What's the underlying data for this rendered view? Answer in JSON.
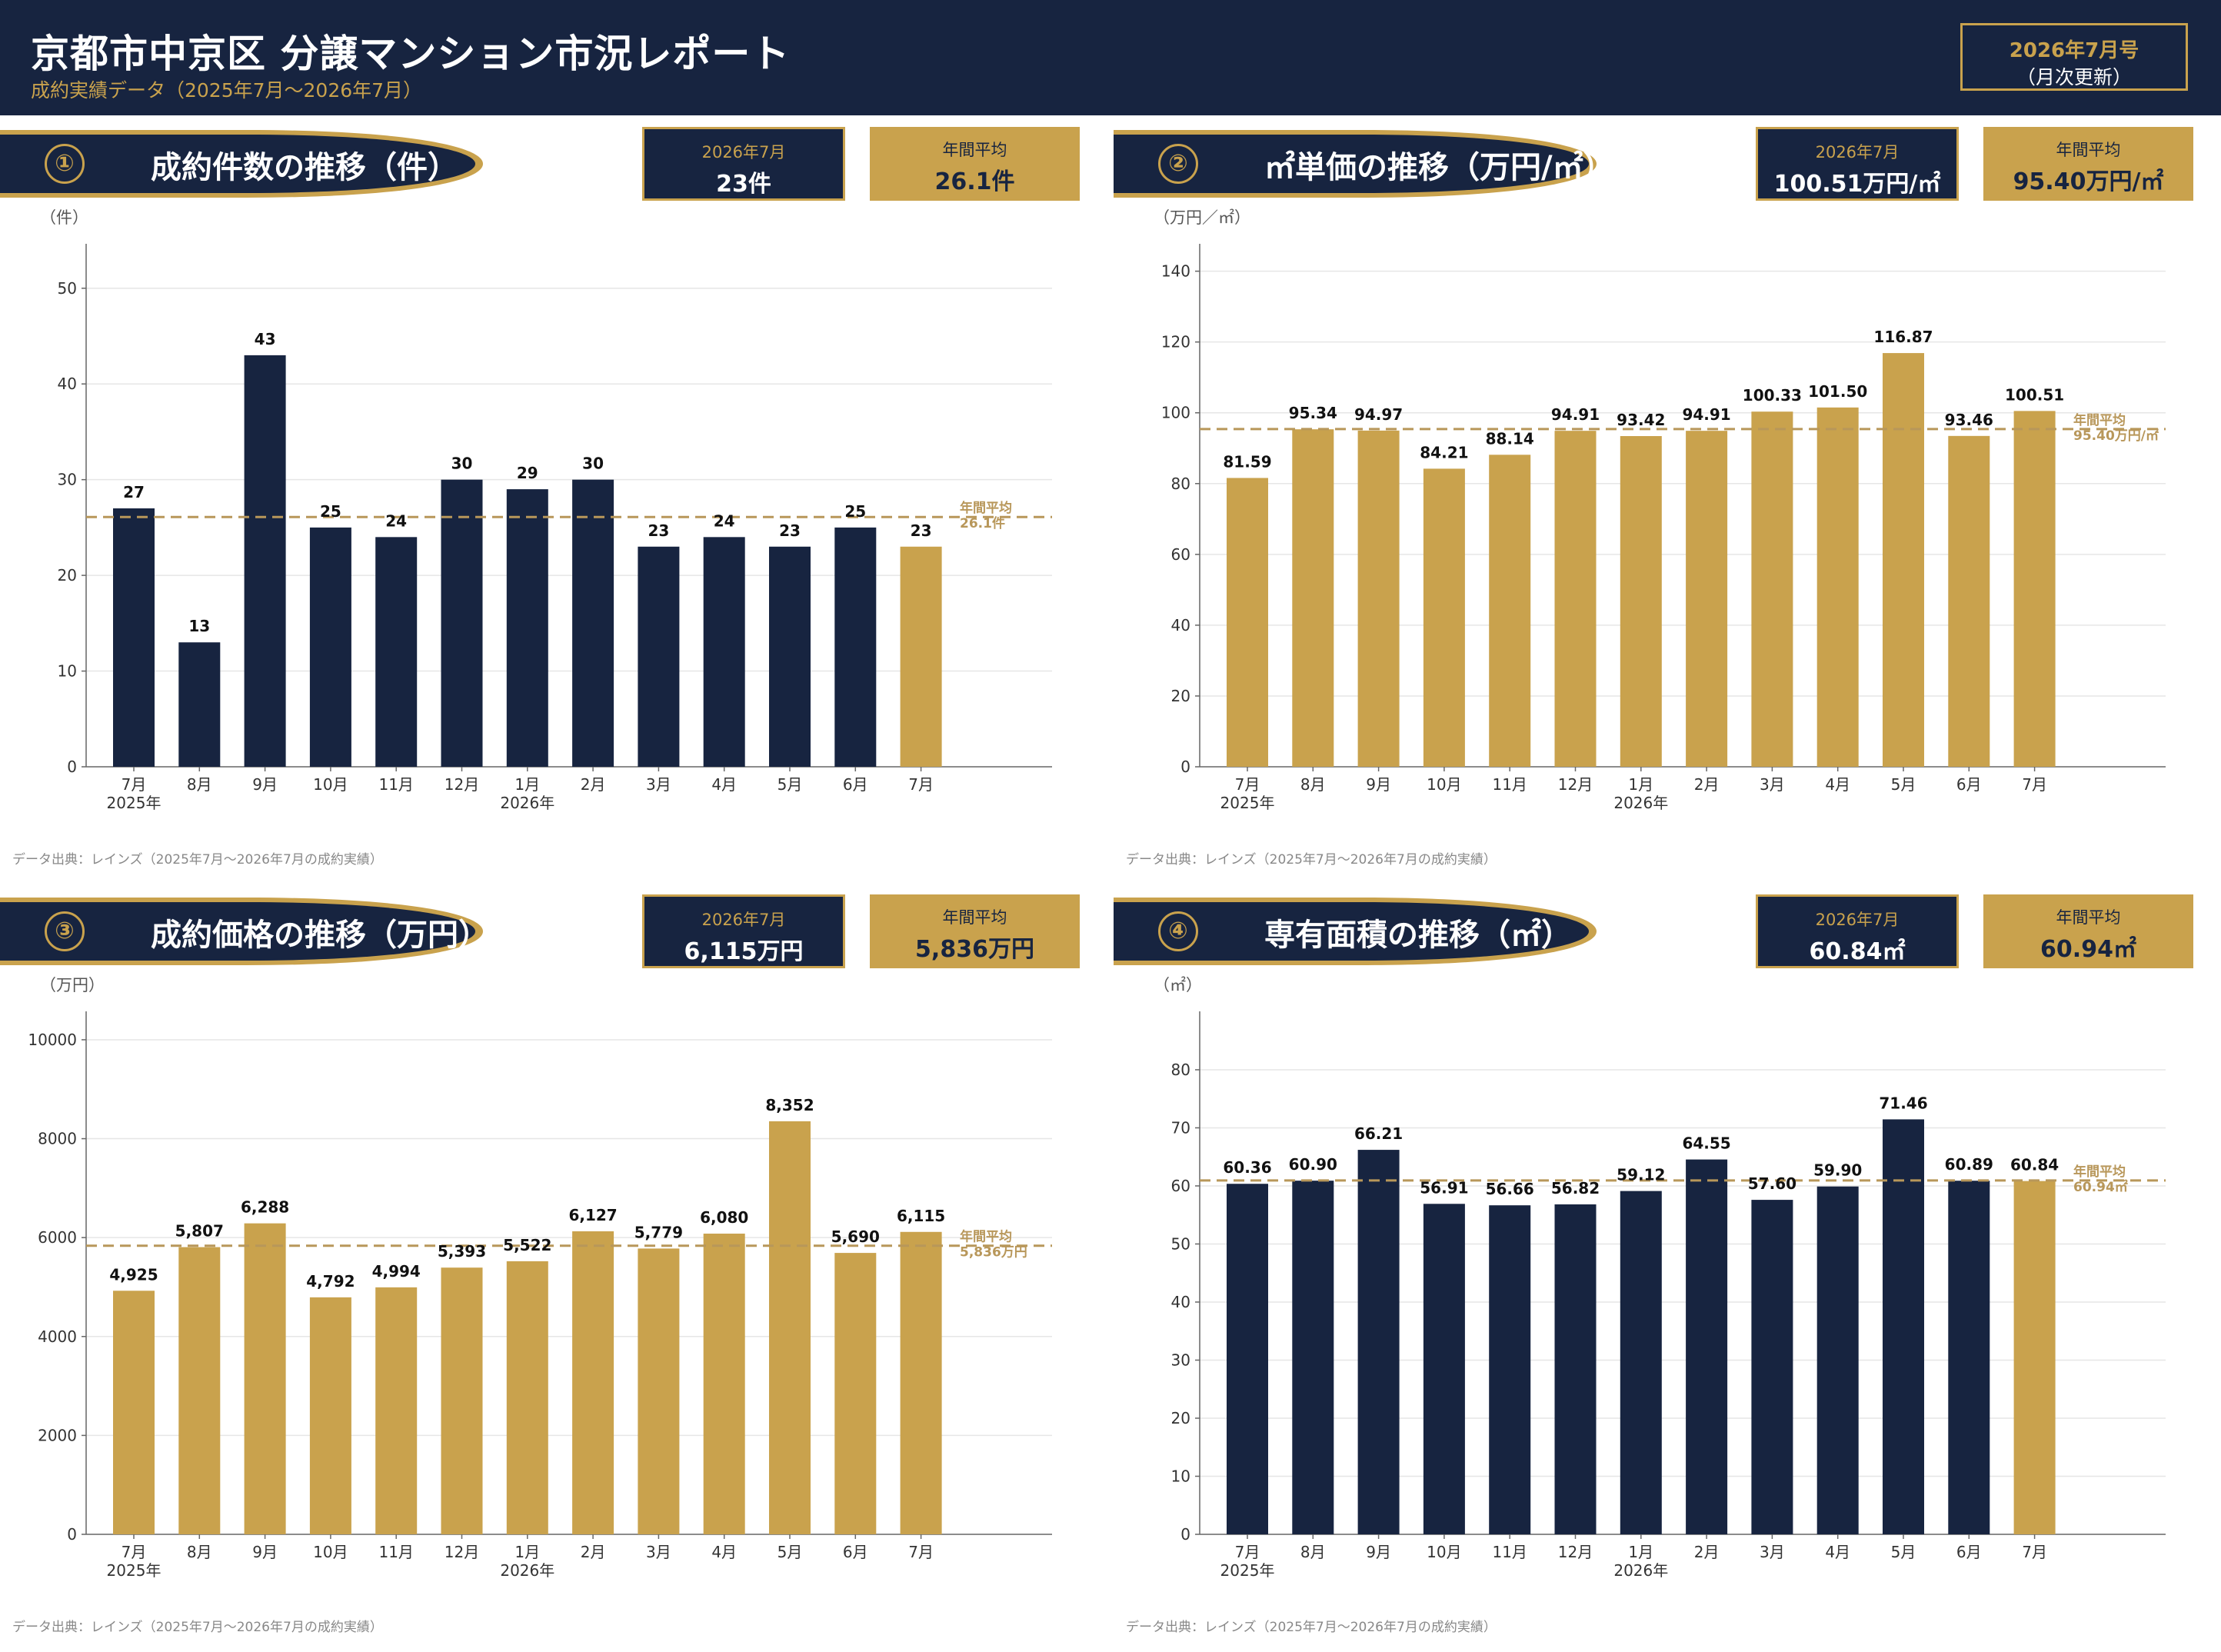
{
  "header": {
    "title": "京都市中京区 分譲マンション市況レポート",
    "subtitle": "成約実績データ（2025年7月〜2026年7月）",
    "issue_line1": "2026年7月号",
    "issue_line2": "（月次更新）"
  },
  "colors": {
    "navy": "#172440",
    "gold": "#c9a24d",
    "avg_line": "#b8975a"
  },
  "panels": [
    {
      "number": "①",
      "title": "成約件数の推移（件）",
      "current_label": "2026年7月",
      "current_value": "23件",
      "avg_label": "年間平均",
      "avg_value": "26.1件",
      "unit": "（件）",
      "source": "データ出典：レインズ（2025年7月〜2026年7月の成約実績）"
    },
    {
      "number": "②",
      "title": "㎡単価の推移（万円/㎡）",
      "current_label": "2026年7月",
      "current_value": "100.51万円/㎡",
      "avg_label": "年間平均",
      "avg_value": "95.40万円/㎡",
      "unit": "（万円／㎡）",
      "source": "データ出典：レインズ（2025年7月〜2026年7月の成約実績）"
    },
    {
      "number": "③",
      "title": "成約価格の推移（万円）",
      "current_label": "2026年7月",
      "current_value": "6,115万円",
      "avg_label": "年間平均",
      "avg_value": "5,836万円",
      "unit": "（万円）",
      "source": "データ出典：レインズ（2025年7月〜2026年7月の成約実績）"
    },
    {
      "number": "④",
      "title": "専有面積の推移（㎡）",
      "current_label": "2026年7月",
      "current_value": "60.84㎡",
      "avg_label": "年間平均",
      "avg_value": "60.94㎡",
      "unit": "（㎡）",
      "source": "データ出典：レインズ（2025年7月〜2026年7月の成約実績）"
    }
  ],
  "chart_data": [
    {
      "type": "bar",
      "categories": [
        "7月",
        "8月",
        "9月",
        "10月",
        "11月",
        "12月",
        "1月",
        "2月",
        "3月",
        "4月",
        "5月",
        "6月",
        "7月"
      ],
      "year_labels": [
        "2025年",
        "",
        "",
        "",
        "",
        "",
        "2026年",
        "",
        "",
        "",
        "",
        "",
        ""
      ],
      "values": [
        27,
        13,
        43,
        25,
        24,
        30,
        29,
        30,
        23,
        24,
        23,
        25,
        23
      ],
      "value_labels": [
        "27",
        "13",
        "43",
        "25",
        "24",
        "30",
        "29",
        "30",
        "23",
        "24",
        "23",
        "25",
        "23"
      ],
      "ylim": [
        0,
        54
      ],
      "yticks": [
        0,
        10,
        20,
        30,
        40,
        50
      ],
      "ytick_labels": [
        "0",
        "10",
        "20",
        "30",
        "40",
        "50"
      ],
      "average": 26.1,
      "avg_label_1": "年間平均",
      "avg_label_2": "26.1件",
      "bar_colors": [
        "#172440",
        "#172440",
        "#172440",
        "#172440",
        "#172440",
        "#172440",
        "#172440",
        "#172440",
        "#172440",
        "#172440",
        "#172440",
        "#172440",
        "#c9a24d"
      ],
      "grid": true
    },
    {
      "type": "bar",
      "categories": [
        "7月",
        "8月",
        "9月",
        "10月",
        "11月",
        "12月",
        "1月",
        "2月",
        "3月",
        "4月",
        "5月",
        "6月",
        "7月"
      ],
      "year_labels": [
        "2025年",
        "",
        "",
        "",
        "",
        "",
        "2026年",
        "",
        "",
        "",
        "",
        "",
        ""
      ],
      "values": [
        81.59,
        95.34,
        94.97,
        84.21,
        88.14,
        94.91,
        93.42,
        94.91,
        100.33,
        101.5,
        116.87,
        93.46,
        100.51
      ],
      "value_labels": [
        "81.59",
        "95.34",
        "94.97",
        "84.21",
        "88.14",
        "94.91",
        "93.42",
        "94.91",
        "100.33",
        "101.50",
        "116.87",
        "93.46",
        "100.51"
      ],
      "ylim": [
        0,
        146
      ],
      "yticks": [
        0,
        20,
        40,
        60,
        80,
        100,
        120,
        140
      ],
      "ytick_labels": [
        "0",
        "20",
        "40",
        "60",
        "80",
        "100",
        "120",
        "140"
      ],
      "average": 95.4,
      "avg_label_1": "年間平均",
      "avg_label_2": "95.40万円/㎡",
      "bar_colors": [
        "#c9a24d",
        "#c9a24d",
        "#c9a24d",
        "#c9a24d",
        "#c9a24d",
        "#c9a24d",
        "#c9a24d",
        "#c9a24d",
        "#c9a24d",
        "#c9a24d",
        "#c9a24d",
        "#c9a24d",
        "#c9a24d"
      ],
      "grid": true
    },
    {
      "type": "bar",
      "categories": [
        "7月",
        "8月",
        "9月",
        "10月",
        "11月",
        "12月",
        "1月",
        "2月",
        "3月",
        "4月",
        "5月",
        "6月",
        "7月"
      ],
      "year_labels": [
        "2025年",
        "",
        "",
        "",
        "",
        "",
        "2026年",
        "",
        "",
        "",
        "",
        "",
        ""
      ],
      "values": [
        4925,
        5807,
        6288,
        4792,
        4994,
        5393,
        5522,
        6127,
        5779,
        6080,
        8352,
        5690,
        6115
      ],
      "value_labels": [
        "4,925",
        "5,807",
        "6,288",
        "4,792",
        "4,994",
        "5,393",
        "5,522",
        "6,127",
        "5,779",
        "6,080",
        "8,352",
        "5,690",
        "6,115"
      ],
      "ylim": [
        0,
        10450
      ],
      "yticks": [
        0,
        2000,
        4000,
        6000,
        8000,
        10000
      ],
      "ytick_labels": [
        "0",
        "2000",
        "4000",
        "6000",
        "8000",
        "10000"
      ],
      "average": 5836,
      "avg_label_1": "年間平均",
      "avg_label_2": "5,836万円",
      "bar_colors": [
        "#c9a24d",
        "#c9a24d",
        "#c9a24d",
        "#c9a24d",
        "#c9a24d",
        "#c9a24d",
        "#c9a24d",
        "#c9a24d",
        "#c9a24d",
        "#c9a24d",
        "#c9a24d",
        "#c9a24d",
        "#c9a24d"
      ],
      "grid": true
    },
    {
      "type": "bar",
      "categories": [
        "7月",
        "8月",
        "9月",
        "10月",
        "11月",
        "12月",
        "1月",
        "2月",
        "3月",
        "4月",
        "5月",
        "6月",
        "7月"
      ],
      "year_labels": [
        "2025年",
        "",
        "",
        "",
        "",
        "",
        "2026年",
        "",
        "",
        "",
        "",
        "",
        ""
      ],
      "values": [
        60.36,
        60.9,
        66.21,
        56.91,
        56.66,
        56.82,
        59.12,
        64.55,
        57.6,
        59.9,
        71.46,
        60.89,
        60.84
      ],
      "value_labels": [
        "60.36",
        "60.90",
        "66.21",
        "56.91",
        "56.66",
        "56.82",
        "59.12",
        "64.55",
        "57.60",
        "59.90",
        "71.46",
        "60.89",
        "60.84"
      ],
      "ylim": [
        0,
        89
      ],
      "yticks": [
        0,
        10,
        20,
        30,
        40,
        50,
        60,
        70,
        80
      ],
      "ytick_labels": [
        "0",
        "10",
        "20",
        "30",
        "40",
        "50",
        "60",
        "70",
        "80"
      ],
      "average": 60.94,
      "avg_label_1": "年間平均",
      "avg_label_2": "60.94㎡",
      "bar_colors": [
        "#172440",
        "#172440",
        "#172440",
        "#172440",
        "#172440",
        "#172440",
        "#172440",
        "#172440",
        "#172440",
        "#172440",
        "#172440",
        "#172440",
        "#c9a24d"
      ],
      "grid": true
    }
  ]
}
